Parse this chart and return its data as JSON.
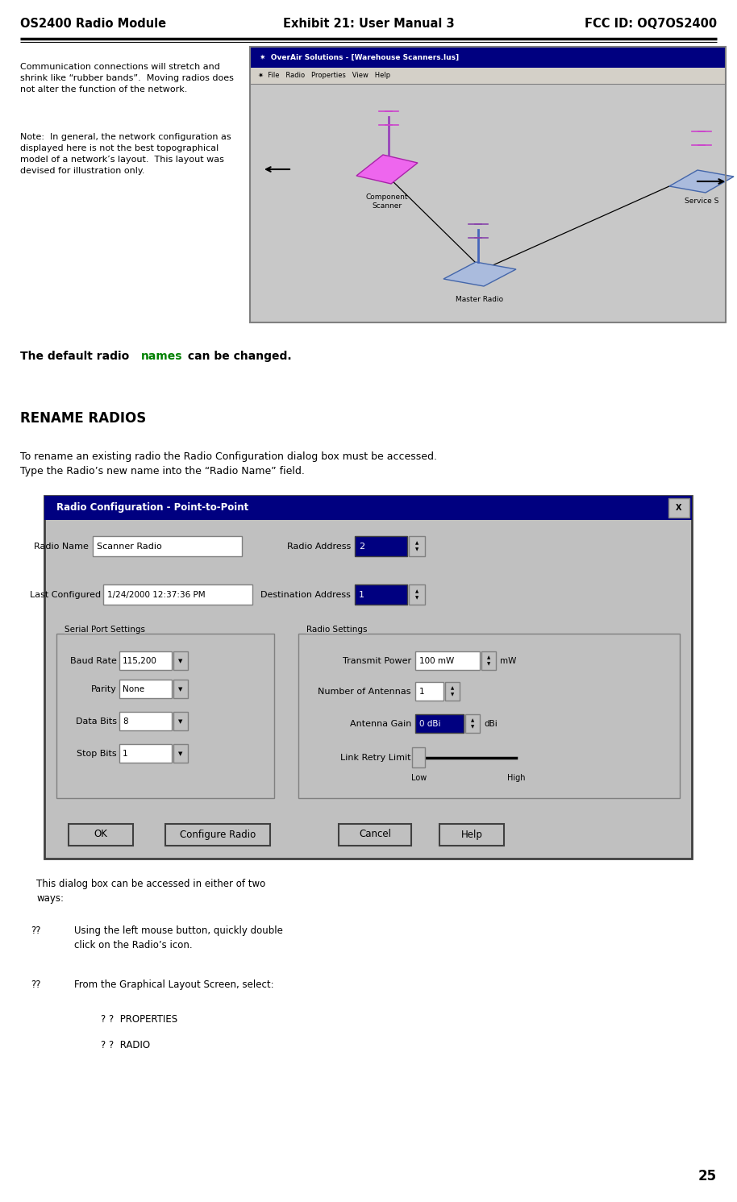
{
  "page_width": 9.14,
  "page_height": 14.91,
  "bg_color": "#ffffff",
  "header_left": "OS2400 Radio Module",
  "header_center": "Exhibit 21: User Manual 3",
  "header_right": "FCC ID: OQ7OS2400",
  "header_font_size": 11,
  "footer_page_num": "25",
  "section1_text": "Communication connections will stretch and\nshrink like “rubber bands”.  Moving radios does\nnot alter the function of the network.",
  "section1_note": "Note:  In general, the network configuration as\ndisplayed here is not the best topographical\nmodel of a network’s layout.  This layout was\ndevised for illustration only.",
  "default_radio_part1": "The default radio ",
  "default_radio_names": "names",
  "default_radio_part2": " can be changed.",
  "names_color": "#008000",
  "rename_heading": "RENAME RADIOS",
  "rename_intro": "To rename an existing radio the Radio Configuration dialog box must be accessed.\nType the Radio’s new name into the “Radio Name” field.",
  "dialog_title": "Radio Configuration - Point-to-Point",
  "dialog_title_bg": "#000080",
  "dialog_title_fg": "#ffffff",
  "dialog_bg": "#c0c0c0",
  "serial_port_label": "Serial Port Settings",
  "radio_settings_label": "Radio Settings",
  "btn_ok": "OK",
  "btn_configure": "Configure Radio",
  "btn_cancel": "Cancel",
  "btn_help": "Help",
  "link_retry_low": "Low",
  "link_retry_high": "High",
  "bottom_text1": "This dialog box can be accessed in either of two\nways:",
  "bottom_b1_bullet": "??",
  "bottom_b1_text": "Using the left mouse button, quickly double\nclick on the Radio’s icon.",
  "bottom_b2_bullet": "??",
  "bottom_b2_text": "From the Graphical Layout Screen, select:",
  "bottom_sub1": "? ?  PROPERTIES",
  "bottom_sub2": "? ?  RADIO"
}
